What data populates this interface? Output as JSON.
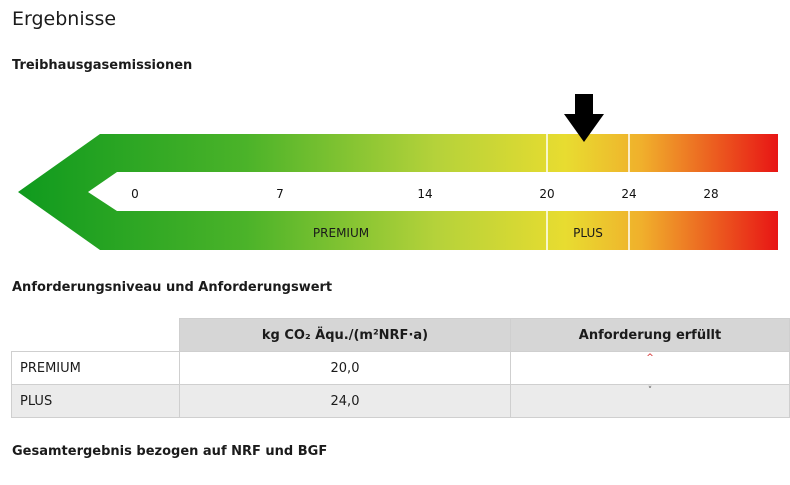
{
  "page": {
    "title": "Ergebnisse"
  },
  "sections": {
    "emissions": "Treibhausgasemissionen",
    "requirements": "Anforderungsniveau und Anforderungswert",
    "total": "Gesamtergebnis bezogen auf NRF und BGF"
  },
  "scale": {
    "ticks": [
      "0",
      "7",
      "14",
      "20",
      "24",
      "28"
    ],
    "bands": {
      "premium": "PREMIUM",
      "plus": "PLUS"
    },
    "colors": {
      "green": "#1a9e1a",
      "yellow": "#e6d92a",
      "red": "#e81515"
    },
    "marker_value": 22
  },
  "table": {
    "header_unit": "kg CO₂ Äqu./(m²NRF·a)",
    "header_ok": "Anforderung erfüllt",
    "rows": [
      {
        "label": "PREMIUM",
        "value": "20,0",
        "mark": "^"
      },
      {
        "label": "PLUS",
        "value": "24,0",
        "mark": "˅"
      }
    ]
  }
}
